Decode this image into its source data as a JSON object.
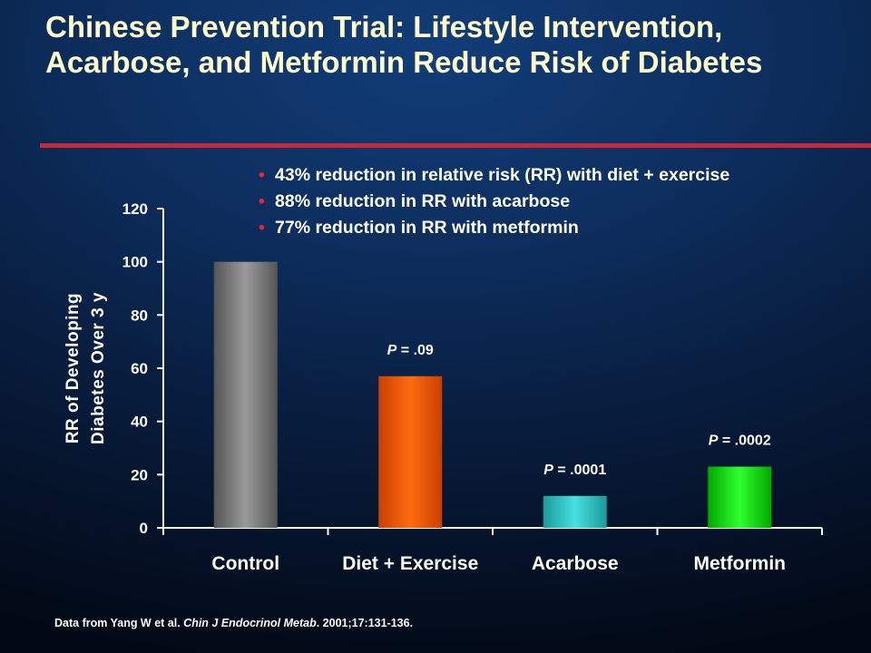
{
  "slide": {
    "title": "Chinese Prevention Trial: Lifestyle Intervention, Acarbose, and Metformin Reduce Risk of Diabetes",
    "bullets": [
      "43% reduction in relative risk (RR) with diet + exercise",
      "88% reduction in RR with acarbose",
      "77% reduction in RR with metformin"
    ],
    "citation": {
      "prefix": "Data from Yang W et al. ",
      "journal": "Chin J Endocrinol Metab",
      "suffix": ". 2001;17:131-136."
    },
    "colors": {
      "title": "#ffffcc",
      "rule": "#c8283c",
      "bullet": "#e0283a"
    }
  },
  "chart_data": {
    "type": "bar",
    "categories": [
      "Control",
      "Diet + Exercise",
      "Acarbose",
      "Metformin"
    ],
    "values": [
      100,
      57,
      12,
      23
    ],
    "ylabel_lines": [
      "RR of Developing",
      "Diabetes Over 3 y"
    ],
    "ylim": [
      0,
      120
    ],
    "yticks": [
      0,
      20,
      40,
      60,
      80,
      100,
      120
    ],
    "grid": false,
    "annotations": [
      {
        "category": "Diet + Exercise",
        "p_label": "P",
        "p_value": " = .09"
      },
      {
        "category": "Acarbose",
        "p_label": "P",
        "p_value": " = .0001"
      },
      {
        "category": "Metformin",
        "p_label": "P",
        "p_value": " = .0002"
      }
    ],
    "bar_colors": [
      [
        "#555555",
        "#9a9a9a",
        "#555555"
      ],
      [
        "#c84000",
        "#ff6a10",
        "#c84000"
      ],
      [
        "#1a9a9a",
        "#48e0e0",
        "#1a9a9a"
      ],
      [
        "#00a800",
        "#30ff30",
        "#00a800"
      ]
    ]
  }
}
